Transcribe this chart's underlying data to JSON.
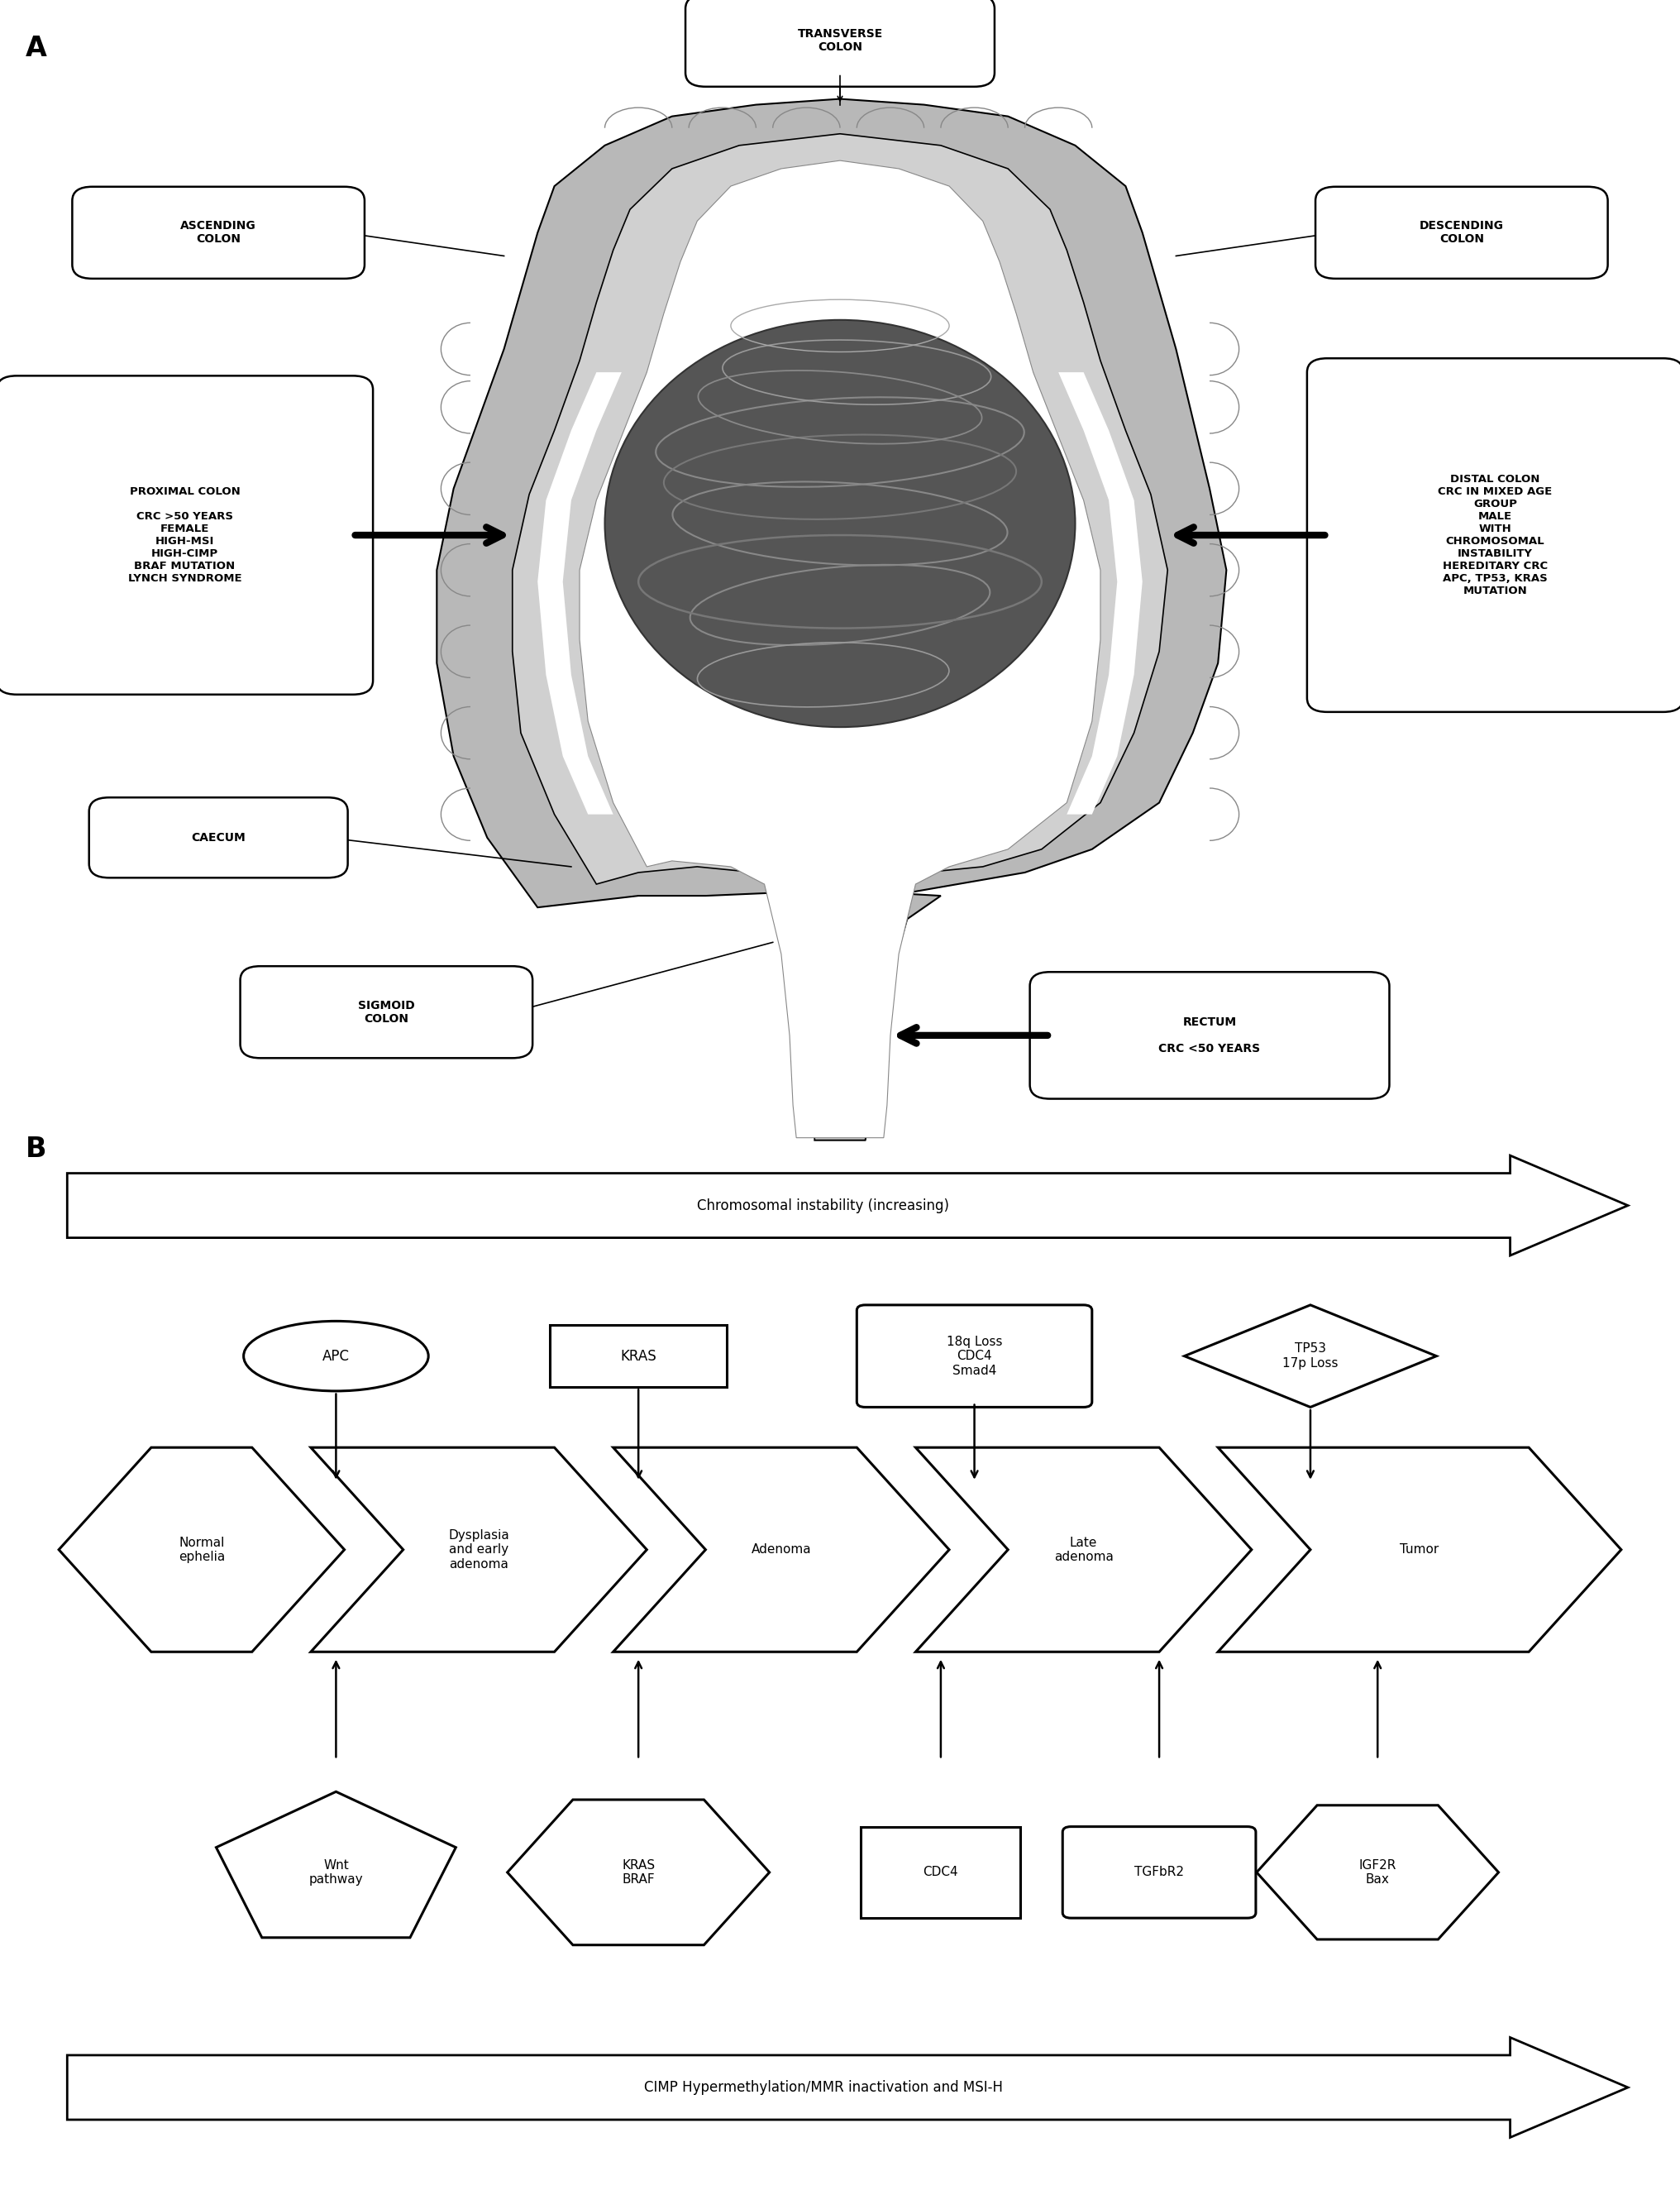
{
  "fig_width": 20.32,
  "fig_height": 26.54,
  "bg_color": "#ffffff",
  "panel_A_label": "A",
  "panel_B_label": "B",
  "colon_labels": {
    "transverse": "TRANSVERSE\nCOLON",
    "ascending": "ASCENDING\nCOLON",
    "descending": "DESCENDING\nCOLON",
    "proximal": "PROXIMAL COLON\n\nCRC >50 YEARS\nFEMALE\nHIGH-MSI\nHIGH-CIMP\nBRAF MUTATION\nLYNCH SYNDROME",
    "distal": "DISTAL COLON\nCRC IN MIXED AGE\nGROUP\nMALE\nWITH\nCHROMOSOMAL\nINSTABILITY\nHEREDITARY CRC\nAPC, TP53, KRAS\nMUTATION",
    "caecum": "CAECUM",
    "sigmoid": "SIGMOID\nCOLON",
    "rectum": "RECTUM\n\nCRC <50 YEARS"
  },
  "chrom_instability_label": "Chromosomal instability (increasing)",
  "cimp_label": "CIMP Hypermethylation/MMR inactivation and MSI-H"
}
